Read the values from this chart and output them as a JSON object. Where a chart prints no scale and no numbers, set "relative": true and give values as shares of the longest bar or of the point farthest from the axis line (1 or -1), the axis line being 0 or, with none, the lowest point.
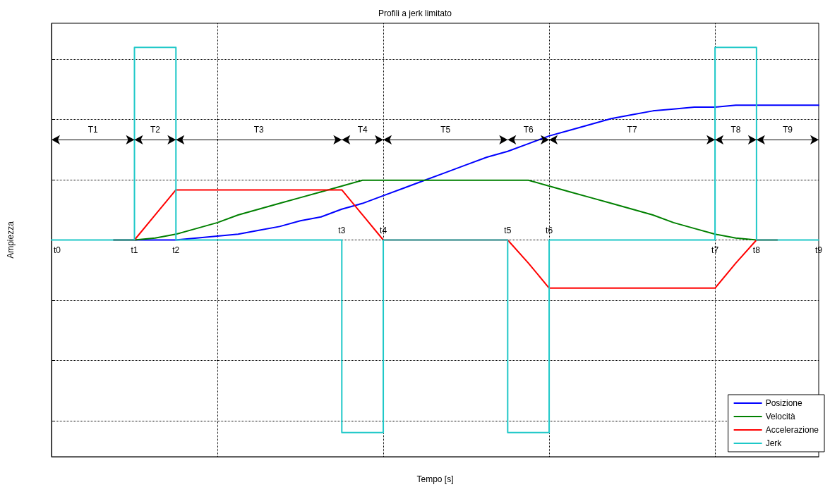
{
  "chart_data": {
    "type": "line",
    "title": "Profili a jerk limitato",
    "xlabel": "Tempo [s]",
    "ylabel": "Ampiezza",
    "relative": true,
    "grid": true,
    "legend": "bottom right",
    "marker": "none",
    "line_style": "solid",
    "categories": [
      null,
      null,
      null,
      null,
      null,
      null,
      null,
      null,
      null,
      null,
      null,
      null,
      null,
      null,
      null,
      null,
      null,
      null,
      null,
      null,
      null,
      null,
      null,
      null,
      null,
      null,
      null,
      null,
      null,
      null,
      null,
      null,
      null,
      null,
      null,
      null,
      null,
      null
    ],
    "series": [
      {
        "name": "Posizione",
        "color": "#0000ff",
        "values": [
          null,
          null,
          null,
          0,
          0,
          0,
          0,
          0.01,
          0.02,
          0.03,
          0.05,
          0.07,
          0.1,
          0.12,
          0.16,
          0.19,
          0.23,
          0.27,
          0.31,
          0.35,
          0.39,
          0.43,
          0.46,
          0.5,
          0.54,
          0.57,
          0.6,
          0.63,
          0.65,
          0.67,
          0.68,
          0.69,
          0.69,
          0.7,
          0.7,
          0.7,
          0.7,
          0.7
        ]
      },
      {
        "name": "Velocità",
        "color": "#008000",
        "values": [
          null,
          null,
          null,
          0,
          0,
          0.01,
          0.03,
          0.06,
          0.09,
          0.13,
          0.16,
          0.19,
          0.22,
          0.25,
          0.28,
          0.31,
          0.31,
          0.31,
          0.31,
          0.31,
          0.31,
          0.31,
          0.31,
          0.31,
          0.28,
          0.25,
          0.22,
          0.19,
          0.16,
          0.13,
          0.09,
          0.06,
          0.03,
          0.01,
          0,
          0,
          null,
          null
        ]
      },
      {
        "name": "Accelerazione",
        "color": "#ff0000",
        "values": [
          null,
          null,
          null,
          0,
          0,
          0.13,
          0.26,
          0.26,
          0.26,
          0.26,
          0.26,
          0.26,
          0.26,
          0.26,
          0.26,
          0.13,
          0,
          0,
          0,
          0,
          0,
          0,
          0,
          -0.12,
          -0.25,
          -0.25,
          -0.25,
          -0.25,
          -0.25,
          -0.25,
          -0.25,
          -0.25,
          -0.25,
          -0.12,
          0,
          0,
          null,
          null
        ]
      },
      {
        "name": "Jerk",
        "color": "#1ec8c8",
        "type": "step",
        "values": [
          0,
          0,
          0,
          0,
          1,
          1,
          0,
          0,
          0,
          0,
          0,
          0,
          0,
          0,
          -1,
          -1,
          0,
          0,
          0,
          0,
          0,
          0,
          -1,
          -1,
          0,
          0,
          0,
          0,
          0,
          0,
          0,
          0,
          1,
          1,
          0,
          0,
          0,
          0
        ]
      }
    ],
    "annotations": [
      "t0",
      "t1",
      "t2",
      "t3",
      "t4",
      "t5",
      "t6",
      "t7",
      "t8",
      "t9",
      "T1",
      "T2",
      "T3",
      "T4",
      "T5",
      "T6",
      "T7",
      "T8",
      "T9"
    ]
  }
}
